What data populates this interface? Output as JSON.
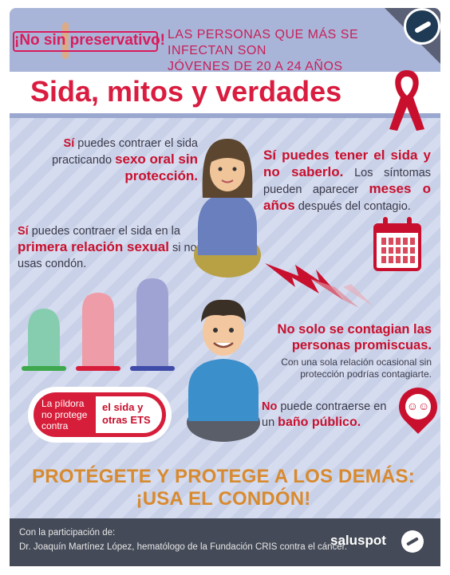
{
  "banner": {
    "slogan": "¡No sin preservativo!",
    "stat_line1": "LAS PERSONAS QUE MÁS SE INFECTAN SON",
    "stat_line2": "JÓVENES DE 20 A 24 AÑOS"
  },
  "title": "Sida, mitos y verdades",
  "facts": {
    "oral": {
      "pre": "Sí",
      "mid": " puedes contraer el sida practicando ",
      "bold": "sexo oral sin protección."
    },
    "first": {
      "pre": "Sí",
      "mid": " puedes contraer el sida en la ",
      "bold": "primera relación sexual",
      "post": " si no usas condón."
    },
    "unknown": {
      "bold1": "Sí puedes tener el sida y no saberlo.",
      "mid": " Los síntomas pueden aparecer ",
      "bold2": "meses o años",
      "post": " después del contagio."
    },
    "promiscuous": {
      "bold": "No solo se contagian las personas promiscuas.",
      "small": "Con una sola relación ocasional sin protección podrías contagiarte."
    },
    "bathroom": {
      "pre": "No",
      "mid": " puede contraerse en un ",
      "bold": "baño público."
    }
  },
  "pill": {
    "left": "La píldora no protege contra",
    "right": "el sida y otras ETS"
  },
  "slogan": "PROTÉGETE Y PROTEGE A LOS DEMÁS: ¡USA EL CONDÓN!",
  "footer": {
    "line1": "Con la participación de:",
    "line2": "Dr. Joaquín Martínez López, hematólogo de la Fundación CRIS contra el cáncer.",
    "brand": "saluspot"
  },
  "colors": {
    "red": "#c8102e",
    "pink": "#d91c5c",
    "orange": "#d88a2f",
    "navy": "#444a57"
  },
  "icons": [
    "logo-icon",
    "ribbon-icon",
    "calendar-icon",
    "lightning-icon",
    "condom-icon",
    "woman-avatar",
    "man-avatar",
    "wc-pin-icon"
  ]
}
